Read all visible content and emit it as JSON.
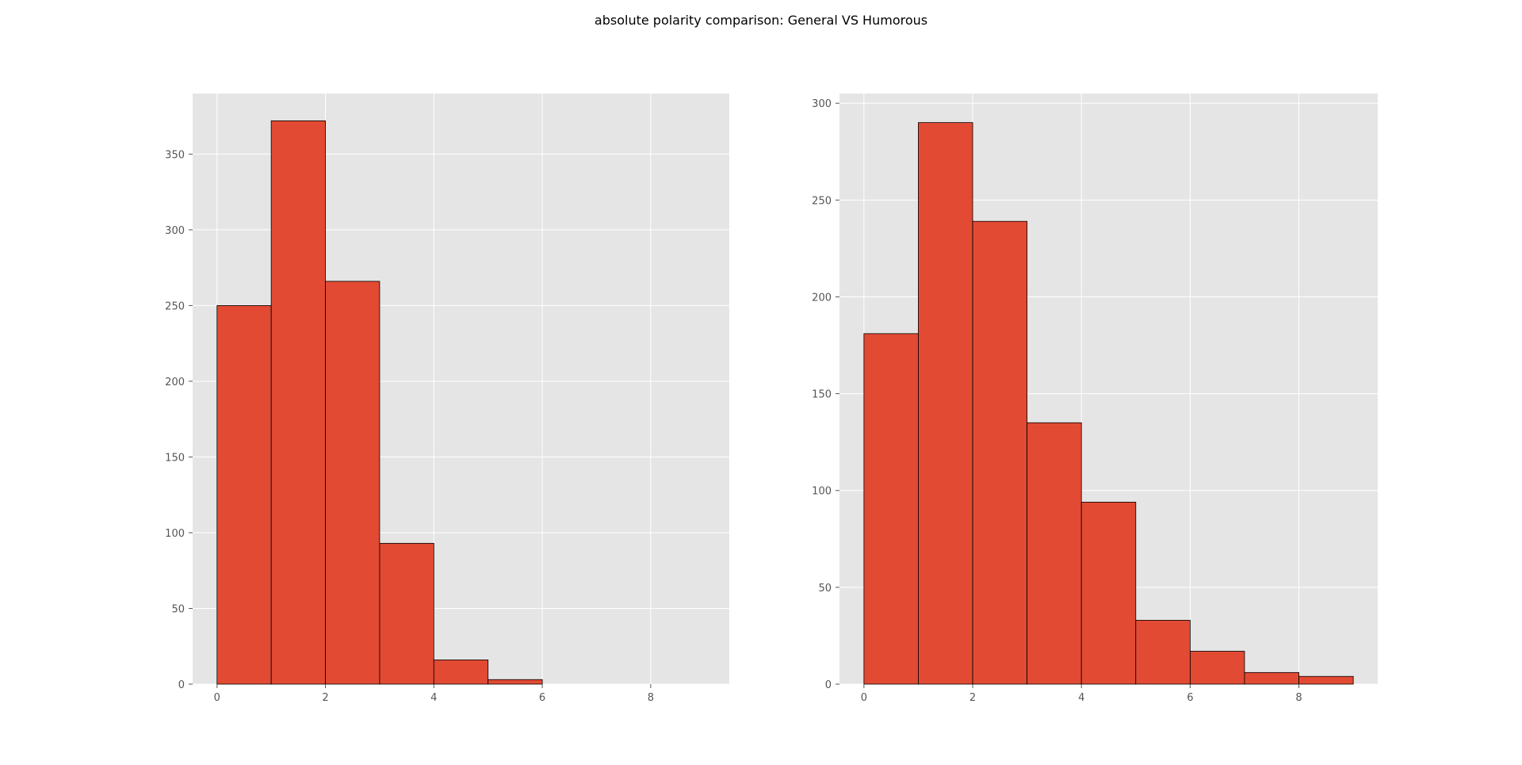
{
  "suptitle": "absolute polarity comparison: General VS Humorous",
  "colors": {
    "plot_background": "#e5e5e5",
    "grid": "#ffffff",
    "bar_fill": "#e24a33",
    "bar_edge": "#000000",
    "tick_text": "#555555"
  },
  "chart_data": [
    {
      "type": "bar",
      "histogram": true,
      "bin_edges": [
        0,
        1,
        2,
        3,
        4,
        5,
        6,
        7,
        8,
        9
      ],
      "values": [
        250,
        372,
        266,
        93,
        16,
        3,
        0,
        0,
        0
      ],
      "xlim": [
        -0.45,
        9.45
      ],
      "ylim": [
        0,
        390
      ],
      "xticks": [
        0,
        2,
        4,
        6,
        8
      ],
      "yticks": [
        0,
        50,
        100,
        150,
        200,
        250,
        300,
        350
      ],
      "grid": true
    },
    {
      "type": "bar",
      "histogram": true,
      "bin_edges": [
        0,
        1,
        2,
        3,
        4,
        5,
        6,
        7,
        8,
        9
      ],
      "values": [
        181,
        290,
        239,
        135,
        94,
        33,
        17,
        6,
        4
      ],
      "xlim": [
        -0.45,
        9.45
      ],
      "ylim": [
        0,
        305
      ],
      "xticks": [
        0,
        2,
        4,
        6,
        8
      ],
      "yticks": [
        0,
        50,
        100,
        150,
        200,
        250,
        300
      ],
      "grid": true
    }
  ]
}
